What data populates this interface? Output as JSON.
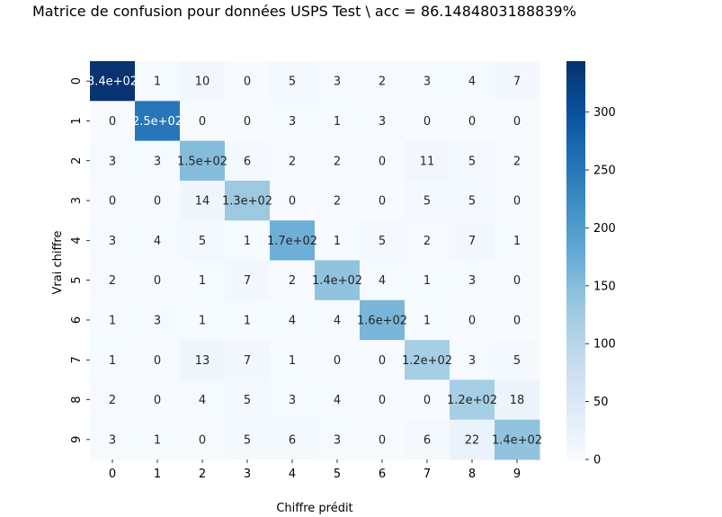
{
  "chart_data": {
    "type": "heatmap",
    "title": "Matrice de confusion pour données USPS Test \\ acc = 86.1484803188839%",
    "xlabel": "Chiffre prédit",
    "ylabel": "Vrai chiffre",
    "x_ticks": [
      "0",
      "1",
      "2",
      "3",
      "4",
      "5",
      "6",
      "7",
      "8",
      "9"
    ],
    "y_ticks": [
      "0",
      "1",
      "2",
      "3",
      "4",
      "5",
      "6",
      "7",
      "8",
      "9"
    ],
    "values": [
      [
        340,
        1,
        10,
        0,
        5,
        3,
        2,
        3,
        4,
        7
      ],
      [
        0,
        250,
        0,
        0,
        3,
        1,
        3,
        0,
        0,
        0
      ],
      [
        3,
        3,
        150,
        6,
        2,
        2,
        0,
        11,
        5,
        2
      ],
      [
        0,
        0,
        14,
        130,
        0,
        2,
        0,
        5,
        5,
        0
      ],
      [
        3,
        4,
        5,
        1,
        170,
        1,
        5,
        2,
        7,
        1
      ],
      [
        2,
        0,
        1,
        7,
        2,
        140,
        4,
        1,
        3,
        0
      ],
      [
        1,
        3,
        1,
        1,
        4,
        4,
        160,
        1,
        0,
        0
      ],
      [
        1,
        0,
        13,
        7,
        1,
        0,
        0,
        120,
        3,
        5
      ],
      [
        2,
        0,
        4,
        5,
        3,
        4,
        0,
        0,
        120,
        18
      ],
      [
        3,
        1,
        0,
        5,
        6,
        3,
        0,
        6,
        22,
        140
      ]
    ],
    "cell_labels": [
      [
        "3.4e+02",
        "1",
        "10",
        "0",
        "5",
        "3",
        "2",
        "3",
        "4",
        "7"
      ],
      [
        "0",
        "2.5e+02",
        "0",
        "0",
        "3",
        "1",
        "3",
        "0",
        "0",
        "0"
      ],
      [
        "3",
        "3",
        "1.5e+02",
        "6",
        "2",
        "2",
        "0",
        "11",
        "5",
        "2"
      ],
      [
        "0",
        "0",
        "14",
        "1.3e+02",
        "0",
        "2",
        "0",
        "5",
        "5",
        "0"
      ],
      [
        "3",
        "4",
        "5",
        "1",
        "1.7e+02",
        "1",
        "5",
        "2",
        "7",
        "1"
      ],
      [
        "2",
        "0",
        "1",
        "7",
        "2",
        "1.4e+02",
        "4",
        "1",
        "3",
        "0"
      ],
      [
        "1",
        "3",
        "1",
        "1",
        "4",
        "4",
        "1.6e+02",
        "1",
        "0",
        "0"
      ],
      [
        "1",
        "0",
        "13",
        "7",
        "1",
        "0",
        "0",
        "1.2e+02",
        "3",
        "5"
      ],
      [
        "2",
        "0",
        "4",
        "5",
        "3",
        "4",
        "0",
        "0",
        "1.2e+02",
        "18"
      ],
      [
        "3",
        "1",
        "0",
        "5",
        "6",
        "3",
        "0",
        "6",
        "22",
        "1.4e+02"
      ]
    ],
    "colorbar": {
      "min": 0,
      "max": 344,
      "ticks": [
        0,
        50,
        100,
        150,
        200,
        250,
        300
      ]
    },
    "colormap": "Blues",
    "colormap_stops": [
      "#f7fbff",
      "#deebf7",
      "#c6dbef",
      "#9ecae1",
      "#6baed6",
      "#4292c6",
      "#2171b5",
      "#08519c",
      "#08306b"
    ]
  }
}
